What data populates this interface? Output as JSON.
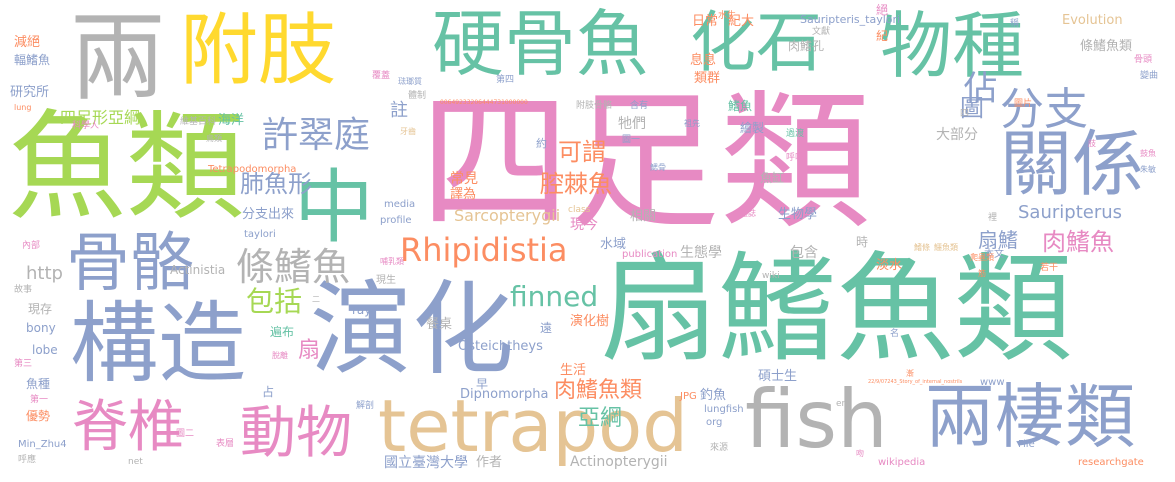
{
  "palette": {
    "green": "#66c2a5",
    "orange": "#fc8d62",
    "blue": "#8da0cb",
    "pink": "#e78ac3",
    "lime": "#a6d854",
    "yellow": "#ffd92f",
    "tan": "#e5c494",
    "gray": "#b3b3b3"
  },
  "words": [
    {
      "text": "四足類",
      "color": "#e78ac3"
    },
    {
      "text": "扇鰭魚類",
      "color": "#66c2a5"
    },
    {
      "text": "魚類",
      "color": "#a6d854"
    },
    {
      "text": "硬骨魚",
      "color": "#66c2a5"
    },
    {
      "text": "附肢",
      "color": "#ffd92f"
    },
    {
      "text": "化石",
      "color": "#66c2a5"
    },
    {
      "text": "物種",
      "color": "#66c2a5"
    },
    {
      "text": "兩",
      "color": "#b3b3b3"
    },
    {
      "text": "構造",
      "color": "#8da0cb"
    },
    {
      "text": "演化",
      "color": "#8da0cb"
    },
    {
      "text": "骨骼",
      "color": "#8da0cb"
    },
    {
      "text": "中",
      "color": "#66c2a5"
    },
    {
      "text": "fish",
      "color": "#b3b3b3"
    },
    {
      "text": "tetrapod",
      "color": "#e5c494"
    },
    {
      "text": "關係",
      "color": "#8da0cb"
    },
    {
      "text": "兩棲類",
      "color": "#8da0cb"
    },
    {
      "text": "脊椎",
      "color": "#e78ac3"
    },
    {
      "text": "動物",
      "color": "#e78ac3"
    },
    {
      "text": "Rhipidistia",
      "color": "#fc8d62"
    },
    {
      "text": "許翠庭",
      "color": "#8da0cb"
    },
    {
      "text": "分支",
      "color": "#8da0cb"
    },
    {
      "text": "條鰭魚",
      "color": "#b3b3b3"
    },
    {
      "text": "finned",
      "color": "#66c2a5"
    },
    {
      "text": "肉鰭魚",
      "color": "#e78ac3"
    },
    {
      "text": "肺魚形",
      "color": "#8da0cb"
    },
    {
      "text": "可謂",
      "color": "#fc8d62"
    },
    {
      "text": "腔棘魚",
      "color": "#fc8d62"
    },
    {
      "text": "包括",
      "color": "#a6d854"
    },
    {
      "text": "佔",
      "color": "#8da0cb"
    },
    {
      "text": "圖",
      "color": "#8da0cb"
    },
    {
      "text": "註",
      "color": "#8da0cb"
    },
    {
      "text": "肉鰭魚類",
      "color": "#fc8d62"
    },
    {
      "text": "亞綱",
      "color": "#66c2a5"
    },
    {
      "text": "Sauripterus",
      "color": "#8da0cb"
    },
    {
      "text": "扇鰭",
      "color": "#8da0cb"
    },
    {
      "text": "http",
      "color": "#b3b3b3"
    },
    {
      "text": "扇",
      "color": "#e78ac3"
    },
    {
      "text": "四足形亞綱",
      "color": "#a6d854"
    },
    {
      "text": "Osteichtheys",
      "color": "#8da0cb"
    },
    {
      "text": "Dipnomorpha",
      "color": "#8da0cb"
    },
    {
      "text": "Sarcopterygii",
      "color": "#e5c494"
    },
    {
      "text": "Actinopterygii",
      "color": "#b3b3b3"
    },
    {
      "text": "國立臺灣大學",
      "color": "#8da0cb"
    },
    {
      "text": "生態學",
      "color": "#b3b3b3"
    },
    {
      "text": "包含",
      "color": "#b3b3b3"
    },
    {
      "text": "大部分",
      "color": "#b3b3b3"
    },
    {
      "text": "條鰭魚類",
      "color": "#b3b3b3"
    },
    {
      "text": "Evolution",
      "color": "#e5c494"
    },
    {
      "text": "日常",
      "color": "#fc8d62"
    },
    {
      "text": "紀大",
      "color": "#fc8d62"
    },
    {
      "text": "息息",
      "color": "#fc8d62"
    },
    {
      "text": "類群",
      "color": "#fc8d62"
    },
    {
      "text": "牠們",
      "color": "#b3b3b3"
    },
    {
      "text": "常見",
      "color": "#fc8d62"
    },
    {
      "text": "譯為",
      "color": "#fc8d62"
    },
    {
      "text": "分支出來",
      "color": "#8da0cb"
    },
    {
      "text": "生物學",
      "color": "#8da0cb"
    },
    {
      "text": "魚缸",
      "color": "#b3b3b3"
    },
    {
      "text": "相關",
      "color": "#b3b3b3"
    },
    {
      "text": "水域",
      "color": "#8da0cb"
    },
    {
      "text": "現今",
      "color": "#e78ac3"
    },
    {
      "text": "演化樹",
      "color": "#fc8d62"
    },
    {
      "text": "遍布",
      "color": "#66c2a5"
    },
    {
      "text": "餐桌",
      "color": "#b3b3b3"
    },
    {
      "text": "生活",
      "color": "#fc8d62"
    },
    {
      "text": "淡水",
      "color": "#fc8d62"
    },
    {
      "text": "碩士生",
      "color": "#8da0cb"
    },
    {
      "text": "釣魚",
      "color": "#8da0cb"
    },
    {
      "text": "作者",
      "color": "#b3b3b3"
    },
    {
      "text": "研究所",
      "color": "#8da0cb"
    },
    {
      "text": "減絕",
      "color": "#fc8d62"
    },
    {
      "text": "輻鰭魚",
      "color": "#8da0cb"
    },
    {
      "text": "海洋",
      "color": "#66c2a5"
    },
    {
      "text": "Actinistia",
      "color": "#b3b3b3"
    },
    {
      "text": "bony",
      "color": "#8da0cb"
    },
    {
      "text": "lobe",
      "color": "#8da0cb"
    },
    {
      "text": "ray",
      "color": "#8da0cb"
    },
    {
      "text": "現存",
      "color": "#b3b3b3"
    },
    {
      "text": "魚種",
      "color": "#8da0cb"
    },
    {
      "text": "優勢",
      "color": "#fc8d62"
    },
    {
      "text": "Sauripteris_taylori",
      "color": "#8da0cb"
    },
    {
      "text": "Tetrapodomorpha",
      "color": "#fc8d62"
    },
    {
      "text": "profile",
      "color": "#8da0cb"
    },
    {
      "text": "taylori",
      "color": "#8da0cb"
    },
    {
      "text": "media",
      "color": "#8da0cb"
    },
    {
      "text": "lungfish",
      "color": "#8da0cb"
    },
    {
      "text": "org",
      "color": "#8da0cb"
    },
    {
      "text": "JPG",
      "color": "#fc8d62"
    },
    {
      "text": "publication",
      "color": "#e78ac3"
    },
    {
      "text": "wikipedia",
      "color": "#e78ac3"
    },
    {
      "text": "researchgate",
      "color": "#fc8d62"
    },
    {
      "text": "File",
      "color": "#8da0cb"
    },
    {
      "text": "Min_Zhu4",
      "color": "#8da0cb"
    },
    {
      "text": "class",
      "color": "#e5c494"
    },
    {
      "text": "wiki",
      "color": "#b3b3b3"
    },
    {
      "text": "www",
      "color": "#8da0cb"
    },
    {
      "text": "net",
      "color": "#b3b3b3"
    },
    {
      "text": "en",
      "color": "#b3b3b3"
    },
    {
      "text": "現生",
      "color": "#b3b3b3"
    },
    {
      "text": "鰭魚",
      "color": "#66c2a5"
    },
    {
      "text": "肉鰭孔",
      "color": "#b3b3b3"
    },
    {
      "text": "繪製",
      "color": "#8da0cb"
    },
    {
      "text": "本文",
      "color": "#8da0cb"
    },
    {
      "text": "時",
      "color": "#b3b3b3"
    },
    {
      "text": "遠",
      "color": "#8da0cb"
    },
    {
      "text": "早",
      "color": "#8da0cb"
    },
    {
      "text": "占",
      "color": "#8da0cb"
    },
    {
      "text": "約",
      "color": "#8da0cb"
    },
    {
      "text": "若干",
      "color": "#fc8d62"
    },
    {
      "text": "科學人",
      "color": "#e78ac3"
    },
    {
      "text": "維基百科",
      "color": "#b3b3b3"
    },
    {
      "text": "體制",
      "color": "#b3b3b3"
    },
    {
      "text": "附肢骨骼",
      "color": "#b3b3b3"
    },
    {
      "text": "含有",
      "color": "#8da0cb"
    },
    {
      "text": "圖一",
      "color": "#8da0cb"
    },
    {
      "text": "圖二",
      "color": "#e78ac3"
    },
    {
      "text": "圖片",
      "color": "#fc8d62"
    },
    {
      "text": "第三",
      "color": "#e78ac3"
    },
    {
      "text": "第一",
      "color": "#e78ac3"
    },
    {
      "text": "第四",
      "color": "#8da0cb"
    },
    {
      "text": "覆蓋",
      "color": "#e78ac3"
    },
    {
      "text": "文獻",
      "color": "#b3b3b3"
    },
    {
      "text": "水生",
      "color": "#fc8d62"
    },
    {
      "text": "骨頭",
      "color": "#e78ac3"
    },
    {
      "text": "變曲",
      "color": "#8da0cb"
    },
    {
      "text": "祖先",
      "color": "#8da0cb"
    },
    {
      "text": "參考",
      "color": "#e78ac3"
    },
    {
      "text": "鰓骨",
      "color": "#8da0cb"
    },
    {
      "text": "呼吸",
      "color": "#e78ac3"
    },
    {
      "text": "過渡",
      "color": "#66c2a5"
    },
    {
      "text": "雜誌",
      "color": "#e78ac3"
    },
    {
      "text": "鰭條",
      "color": "#e5c494"
    },
    {
      "text": "解剖",
      "color": "#8da0cb"
    },
    {
      "text": "表層",
      "color": "#e78ac3"
    },
    {
      "text": "呼應",
      "color": "#b3b3b3"
    },
    {
      "text": "故事",
      "color": "#b3b3b3"
    },
    {
      "text": "內部",
      "color": "#e78ac3"
    },
    {
      "text": "哺乳類",
      "color": "#e78ac3"
    },
    {
      "text": "來源",
      "color": "#b3b3b3"
    },
    {
      "text": "名",
      "color": "#8da0cb"
    },
    {
      "text": "裡",
      "color": "#b3b3b3"
    },
    {
      "text": "稱",
      "color": "#8da0cb"
    },
    {
      "text": "四",
      "color": "#b3b3b3"
    },
    {
      "text": "紀",
      "color": "#fc8d62"
    },
    {
      "text": "絕",
      "color": "#e78ac3"
    },
    {
      "text": "肢",
      "color": "#e78ac3"
    },
    {
      "text": "漸",
      "color": "#fc8d62"
    },
    {
      "text": "筋",
      "color": "#fc8d62"
    },
    {
      "text": "吻",
      "color": "#e78ac3"
    },
    {
      "text": "lung",
      "color": "#fc8d62"
    },
    {
      "text": "00649233206444731000000",
      "color": "#fc8d62"
    },
    {
      "text": "22/9/07243_Story_of_internal_nostrils",
      "color": "#fc8d62"
    },
    {
      "text": "鱷魚類",
      "color": "#e5c494"
    },
    {
      "text": "爬蟲類",
      "color": "#fc8d62"
    },
    {
      "text": "牙齒",
      "color": "#e5c494"
    },
    {
      "text": "鳥類",
      "color": "#b3b3b3"
    },
    {
      "text": "脫離",
      "color": "#e78ac3"
    },
    {
      "text": "朱敏",
      "color": "#8da0cb"
    },
    {
      "text": "鼓魚",
      "color": "#e78ac3"
    },
    {
      "text": "琺瑯質",
      "color": "#8da0cb"
    },
    {
      "text": "二",
      "color": "#b3b3b3"
    }
  ]
}
